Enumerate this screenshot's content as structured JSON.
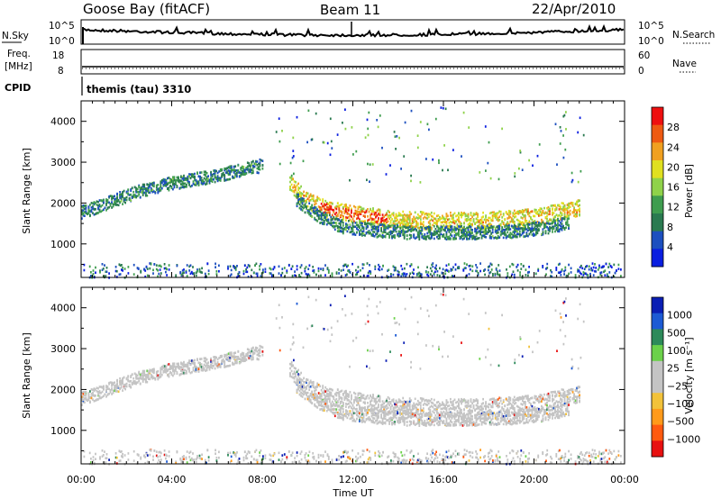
{
  "header": {
    "station": "Goose Bay (fitACF)",
    "beam": "Beam 11",
    "date": "22/Apr/2010"
  },
  "top_panels": {
    "nsky": {
      "label": "N.Sky",
      "right_label": "N.Search",
      "left_ticks": [
        "10^5",
        "10^0"
      ],
      "right_ticks": [
        "10^5",
        "10^0"
      ]
    },
    "freq": {
      "label_line1": "Freq.",
      "label_line2": "[MHz]",
      "left_ticks": [
        "18",
        "8"
      ],
      "right_ticks": [
        "60",
        "0"
      ],
      "right_label": "Nave"
    },
    "cpid": {
      "label": "CPID",
      "value": "themis (tau) 3310"
    }
  },
  "colors": {
    "power": [
      "#0a1ee0",
      "#1c4fbf",
      "#2a7a50",
      "#3f9d4f",
      "#8fd24a",
      "#e0e020",
      "#f0a020",
      "#ee5a12",
      "#ee1010"
    ],
    "velocity": [
      "#e81010",
      "#ff5a10",
      "#ff9a1a",
      "#f2c23a",
      "#c4c4c4",
      "#c4c4c4",
      "#6bd14a",
      "#2d8a5a",
      "#1c5ad4",
      "#0a1eb4"
    ],
    "ground_scatter": "#c4c4c4"
  },
  "chart_data": [
    {
      "type": "heatmap",
      "name": "power",
      "ylabel": "Slant Range [km]",
      "xlabel": "Time UT",
      "y_ticks": [
        1000,
        2000,
        3000,
        4000
      ],
      "y_tick_labels": [
        "1000",
        "2000",
        "3000",
        "4000"
      ],
      "ylim": [
        180,
        4500
      ],
      "xlim": [
        0,
        24
      ],
      "colorbar": {
        "label": "Power [dB]",
        "ticks": [
          "4",
          "8",
          "12",
          "16",
          "20",
          "24",
          "28"
        ],
        "range": [
          0,
          30
        ]
      },
      "bands": [
        {
          "x": [
            0,
            0.8,
            1.5,
            2.5,
            3.5,
            4.5,
            5.5,
            6.5,
            7.2,
            8.0
          ],
          "y": [
            1800,
            1950,
            2100,
            2300,
            2450,
            2560,
            2650,
            2760,
            2850,
            2950
          ],
          "level": 2
        },
        {
          "x": [
            9.2,
            10.0,
            11.0,
            12.0,
            13.5,
            15.0,
            16.5,
            18.0,
            19.5,
            20.5,
            21.2,
            22.0
          ],
          "y": [
            2500,
            2050,
            1850,
            1750,
            1650,
            1600,
            1580,
            1600,
            1650,
            1720,
            1820,
            1900
          ],
          "level": 5
        },
        {
          "x": [
            9.5,
            10.5,
            11.5,
            13.0,
            14.5,
            16.0,
            17.5,
            19.0,
            20.5,
            21.5
          ],
          "y": [
            2100,
            1700,
            1450,
            1350,
            1300,
            1300,
            1300,
            1330,
            1420,
            1550
          ],
          "level": 2
        }
      ]
    },
    {
      "type": "heatmap",
      "name": "velocity",
      "ylabel": "Slant Range [km]",
      "xlabel": "Time UT",
      "y_ticks": [
        1000,
        2000,
        3000,
        4000
      ],
      "y_tick_labels": [
        "1000",
        "2000",
        "3000",
        "4000"
      ],
      "ylim": [
        180,
        4500
      ],
      "xlim": [
        0,
        24
      ],
      "colorbar": {
        "label": "Velocity [m s⁻¹]",
        "ticks": [
          "1000",
          "500",
          "100",
          "25",
          "−25",
          "−100",
          "−500",
          "−1000"
        ],
        "range": [
          -1200,
          1200
        ]
      }
    }
  ],
  "x_axis": {
    "tick_hours": [
      0,
      4,
      8,
      12,
      16,
      20,
      24
    ],
    "tick_labels": [
      "00:00",
      "04:00",
      "08:00",
      "12:00",
      "16:00",
      "20:00",
      "00:00"
    ],
    "label": "Time UT"
  }
}
